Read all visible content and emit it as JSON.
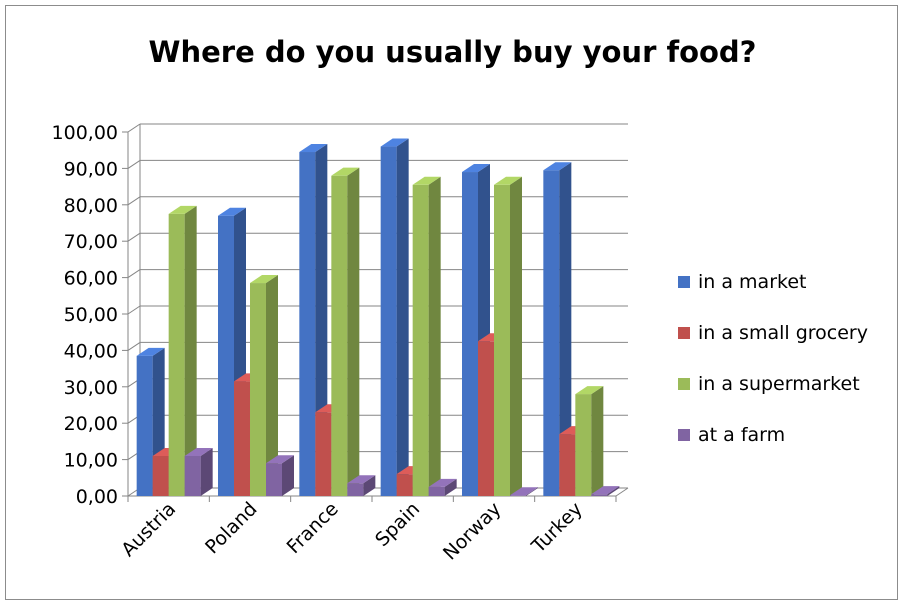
{
  "chart_data": {
    "type": "bar",
    "title": "Where do you usually buy your food?",
    "categories": [
      "Austria",
      "Poland",
      "France",
      "Spain",
      "Norway",
      "Turkey"
    ],
    "series": [
      {
        "name": "in a market",
        "color": "#4472c4",
        "values": [
          38.5,
          77.0,
          94.5,
          96.0,
          89.0,
          89.5
        ]
      },
      {
        "name": "in a small grocery",
        "color": "#c0504d",
        "values": [
          11.0,
          31.5,
          23.0,
          6.0,
          42.5,
          17.0
        ]
      },
      {
        "name": "in a supermarket",
        "color": "#9bbb59",
        "values": [
          77.5,
          58.5,
          88.0,
          85.5,
          85.5,
          28.0
        ]
      },
      {
        "name": "at a farm",
        "color": "#8064a2",
        "values": [
          11.0,
          9.0,
          3.5,
          2.5,
          0.2,
          0.5
        ]
      }
    ],
    "yticks": [
      "0,00",
      "10,00",
      "20,00",
      "30,00",
      "40,00",
      "50,00",
      "60,00",
      "70,00",
      "80,00",
      "90,00",
      "100,00"
    ],
    "ylim": [
      0,
      100
    ],
    "grid": true,
    "legend": "right"
  }
}
